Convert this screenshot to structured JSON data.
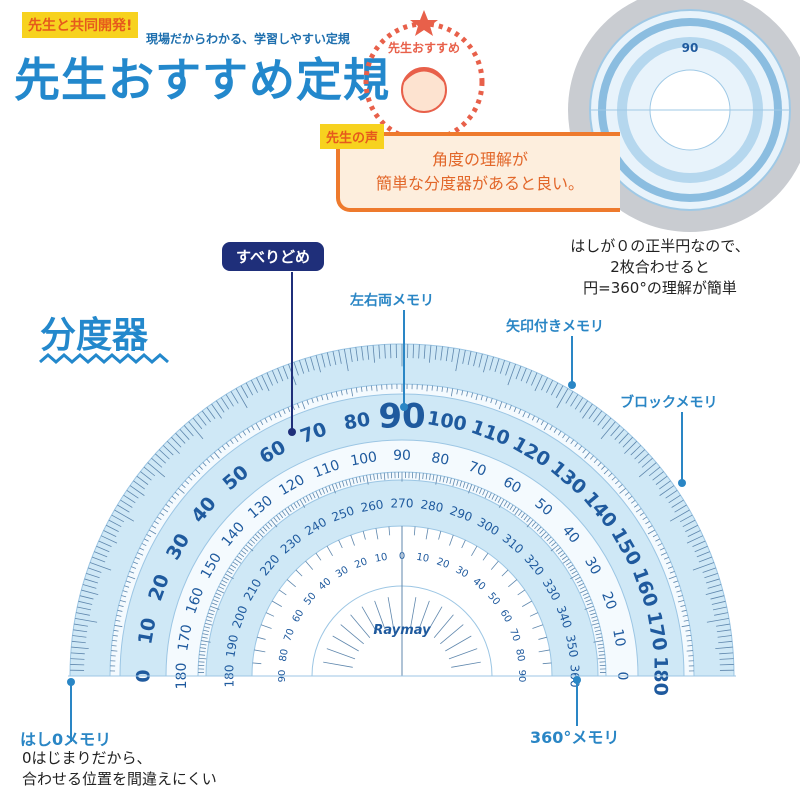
{
  "header": {
    "badge": "先生と共同開発!",
    "subtitle": "現場だからわかる、学習しやすい定規",
    "title": "先生おすすめ定規",
    "stamp_text": "先生おすすめ"
  },
  "voice": {
    "badge": "先生の声",
    "line1": "角度の理解が",
    "line2": "簡単な分度器があると良い。"
  },
  "circle_note": {
    "line1": "はしが０の正半円なので、",
    "line2": "2枚合わせると",
    "line3": "円=360°の理解が簡単"
  },
  "section_title": "分度器",
  "callouts": {
    "grip": "すべりどめ",
    "both_sides": "左右両メモリ",
    "arrow": "矢印付きメモリ",
    "block": "ブロックメモリ",
    "edge_zero": "はし0メモリ",
    "edge_zero_desc1": "0はじまりだから、",
    "edge_zero_desc2": "合わせる位置を間違えにくい",
    "deg360": "360°メモリ"
  },
  "protractor": {
    "brand": "Raymay",
    "outer_scale": [
      "0",
      "10",
      "20",
      "30",
      "40",
      "50",
      "60",
      "70",
      "80",
      "90",
      "100",
      "110",
      "120",
      "130",
      "140",
      "150",
      "160",
      "170",
      "180"
    ],
    "inner_scale": [
      "180",
      "170",
      "160",
      "150",
      "140",
      "130",
      "120",
      "110",
      "100",
      "90",
      "80",
      "70",
      "60",
      "50",
      "40",
      "30",
      "20",
      "10",
      "0"
    ],
    "ring360_scale": [
      "180",
      "190",
      "200",
      "210",
      "220",
      "230",
      "240",
      "250",
      "260",
      "270",
      "280",
      "290",
      "300",
      "310",
      "320",
      "330",
      "340",
      "350",
      "360"
    ],
    "center_scale": [
      "90",
      "80",
      "70",
      "60",
      "50",
      "40",
      "30",
      "20",
      "10",
      "0",
      "10",
      "20",
      "30",
      "40",
      "50",
      "60",
      "70",
      "80",
      "90"
    ],
    "colors": {
      "band": "#cfe8f6",
      "ink": "#1f5a9e",
      "accent": "#2388cc"
    }
  }
}
